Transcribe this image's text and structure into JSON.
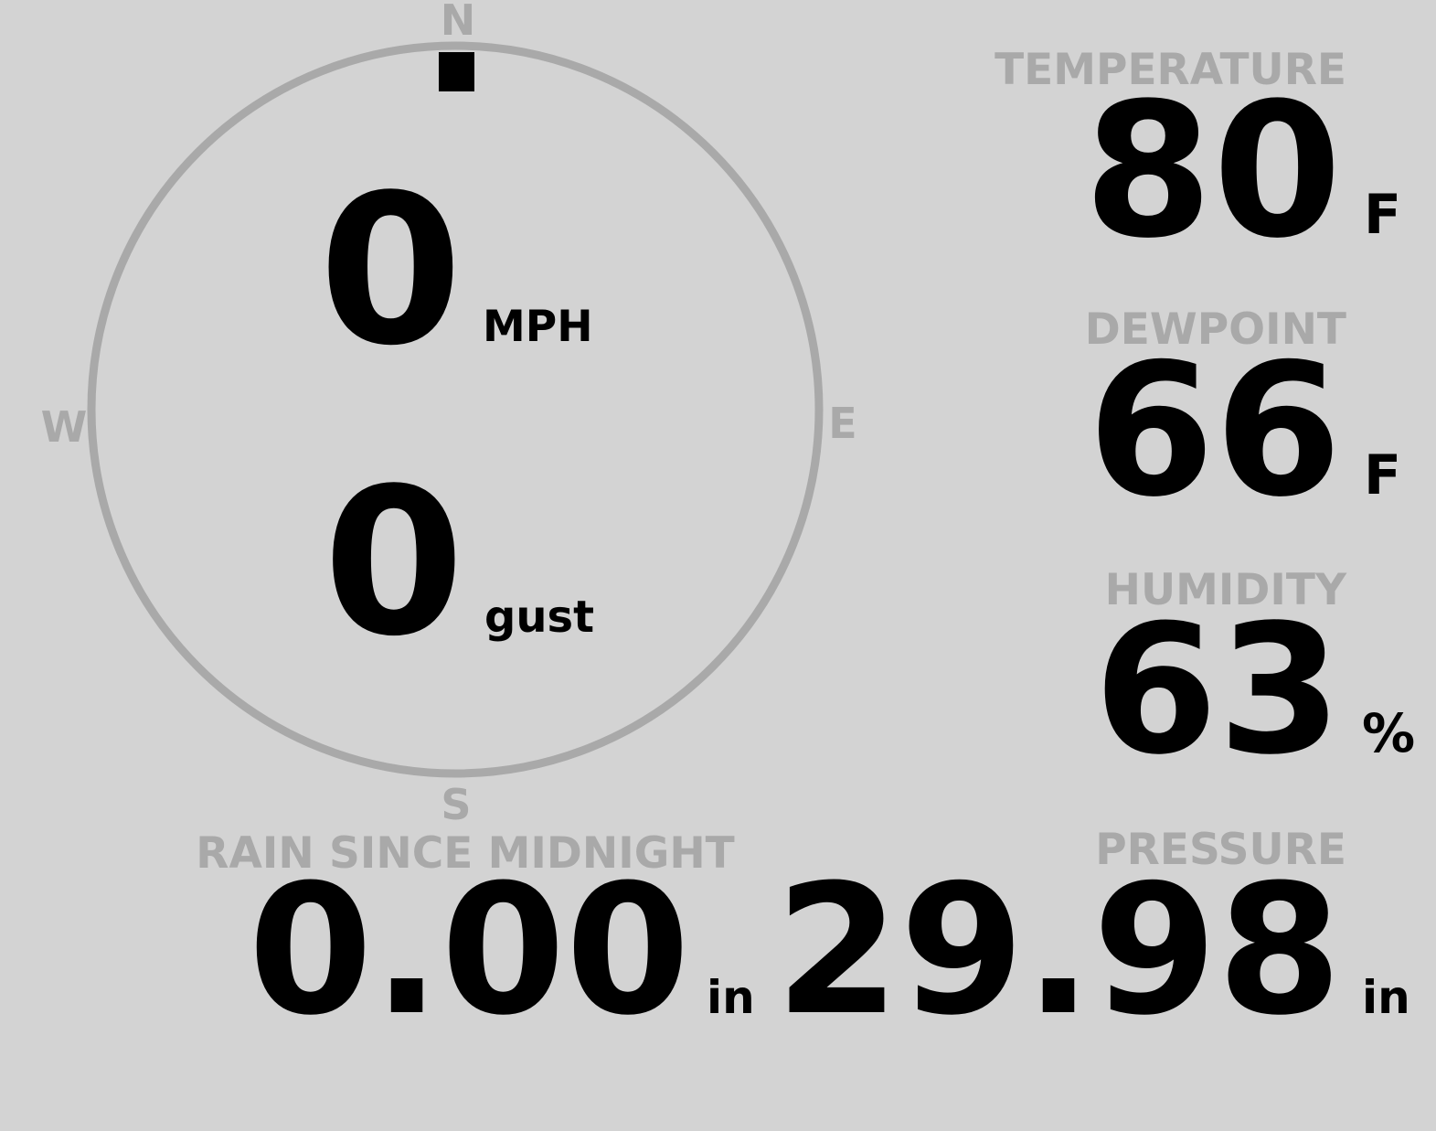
{
  "colors": {
    "background": "#d3d3d3",
    "label": "#a9a9a9",
    "value": "#000000"
  },
  "wind": {
    "compass": {
      "north": "N",
      "east": "E",
      "south": "S",
      "west": "W"
    },
    "direction_degrees": 0,
    "speed": "0",
    "speed_unit": "MPH",
    "gust": "0",
    "gust_unit": "gust"
  },
  "rain": {
    "label": "RAIN SINCE MIDNIGHT",
    "value": "0.00",
    "unit": "in"
  },
  "temperature": {
    "label": "TEMPERATURE",
    "value": "80",
    "unit": "F"
  },
  "dewpoint": {
    "label": "DEWPOINT",
    "value": "66",
    "unit": "F"
  },
  "humidity": {
    "label": "HUMIDITY",
    "value": "63",
    "unit": "%"
  },
  "pressure": {
    "label": "PRESSURE",
    "value": "29.98",
    "unit": "in"
  }
}
